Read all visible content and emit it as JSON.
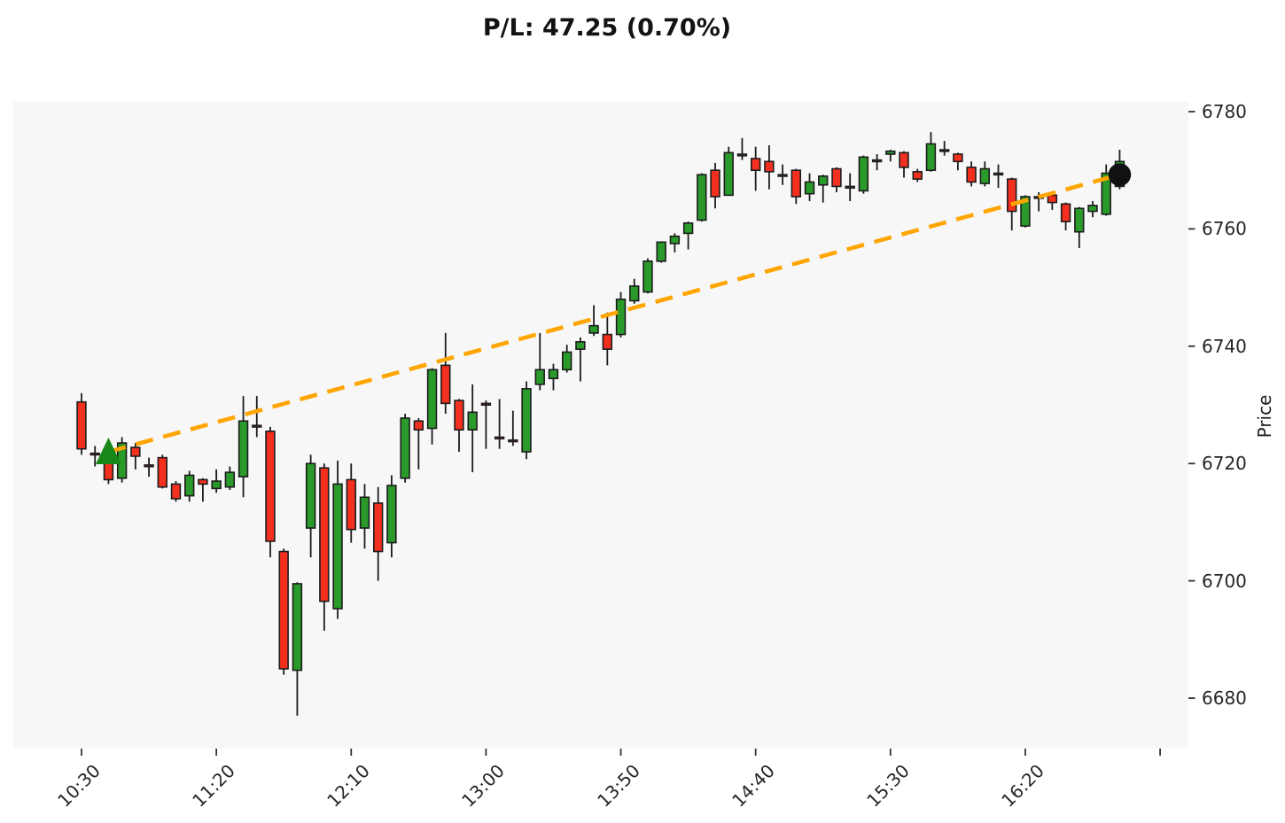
{
  "title": "P/L: 47.25 (0.70%)",
  "y_axis": {
    "label": "Price",
    "ticks": [
      6780,
      6760,
      6740,
      6720,
      6700,
      6680
    ]
  },
  "x_axis": {
    "tick_labels": [
      "10:30",
      "11:20",
      "12:10",
      "13:00",
      "13:50",
      "14:40",
      "15:30",
      "16:20"
    ],
    "label_every_n_candles": 10,
    "unlabeled_tick_at_candle": 80
  },
  "chart_data": {
    "type": "candlestick",
    "interval_minutes": 5,
    "ylim": [
      6671,
      6782
    ],
    "grid": false,
    "times": [
      "10:30",
      "10:35",
      "10:40",
      "10:45",
      "10:50",
      "10:55",
      "11:00",
      "11:05",
      "11:10",
      "11:15",
      "11:20",
      "11:25",
      "11:30",
      "11:35",
      "11:40",
      "11:45",
      "11:50",
      "11:55",
      "12:00",
      "12:05",
      "12:10",
      "12:15",
      "12:20",
      "12:25",
      "12:30",
      "12:35",
      "12:40",
      "12:45",
      "12:50",
      "12:55",
      "13:00",
      "13:05",
      "13:10",
      "13:15",
      "13:20",
      "13:25",
      "13:30",
      "13:35",
      "13:40",
      "13:45",
      "13:50",
      "13:55",
      "14:00",
      "14:05",
      "14:10",
      "14:15",
      "14:20",
      "14:25",
      "14:30",
      "14:35",
      "14:40",
      "14:45",
      "14:50",
      "14:55",
      "15:00",
      "15:05",
      "15:10",
      "15:15",
      "15:20",
      "15:25",
      "15:30",
      "15:35",
      "15:40",
      "15:45",
      "15:50",
      "15:55",
      "16:00",
      "16:05",
      "16:10",
      "16:15",
      "16:20",
      "16:25",
      "16:30",
      "16:35",
      "16:40",
      "16:45",
      "16:50",
      "16:55"
    ],
    "ohlc": [
      [
        6730.5,
        6732.0,
        6721.5,
        6722.5
      ],
      [
        6721.75,
        6723.0,
        6719.5,
        6721.5
      ],
      [
        6720.5,
        6721.25,
        6716.5,
        6717.25
      ],
      [
        6717.5,
        6724.5,
        6716.75,
        6723.5
      ],
      [
        6722.75,
        6723.5,
        6719.0,
        6721.25
      ],
      [
        6719.75,
        6721.0,
        6717.75,
        6719.5
      ],
      [
        6721.0,
        6721.5,
        6715.75,
        6716.0
      ],
      [
        6716.5,
        6717.0,
        6713.5,
        6714.0
      ],
      [
        6714.5,
        6718.75,
        6713.5,
        6718.0
      ],
      [
        6717.25,
        6717.5,
        6713.5,
        6716.5
      ],
      [
        6715.75,
        6719.0,
        6715.0,
        6717.0
      ],
      [
        6716.0,
        6719.5,
        6715.5,
        6718.5
      ],
      [
        6717.75,
        6731.5,
        6714.25,
        6727.25
      ],
      [
        6726.5,
        6731.5,
        6724.5,
        6726.25
      ],
      [
        6725.5,
        6726.25,
        6704.0,
        6706.75
      ],
      [
        6705.0,
        6705.5,
        6684.0,
        6685.0
      ],
      [
        6684.75,
        6699.75,
        6677.0,
        6699.5
      ],
      [
        6709.0,
        6721.5,
        6704.0,
        6720.0
      ],
      [
        6719.25,
        6720.0,
        6691.5,
        6696.5
      ],
      [
        6695.25,
        6720.5,
        6693.5,
        6716.5
      ],
      [
        6717.25,
        6720.0,
        6706.5,
        6708.75
      ],
      [
        6709.0,
        6716.5,
        6705.5,
        6714.25
      ],
      [
        6713.25,
        6716.0,
        6700.0,
        6705.0
      ],
      [
        6706.5,
        6718.0,
        6704.0,
        6716.25
      ],
      [
        6717.5,
        6728.5,
        6716.75,
        6727.75
      ],
      [
        6727.25,
        6727.75,
        6719.0,
        6725.75
      ],
      [
        6726.0,
        6736.25,
        6723.25,
        6736.0
      ],
      [
        6736.75,
        6742.25,
        6728.5,
        6730.25
      ],
      [
        6730.75,
        6731.0,
        6722.0,
        6725.75
      ],
      [
        6725.75,
        6733.5,
        6718.5,
        6728.75
      ],
      [
        6730.25,
        6730.75,
        6722.5,
        6730.0
      ],
      [
        6724.5,
        6731.0,
        6722.5,
        6724.25
      ],
      [
        6724.0,
        6729.0,
        6723.0,
        6723.75
      ],
      [
        6722.0,
        6734.0,
        6720.75,
        6732.75
      ],
      [
        6733.5,
        6742.25,
        6732.5,
        6736.0
      ],
      [
        6734.5,
        6737.0,
        6732.5,
        6736.0
      ],
      [
        6736.0,
        6740.25,
        6735.5,
        6739.0
      ],
      [
        6739.5,
        6741.5,
        6734.0,
        6740.75
      ],
      [
        6742.25,
        6747.0,
        6741.75,
        6743.5
      ],
      [
        6742.0,
        6745.75,
        6736.75,
        6739.5
      ],
      [
        6742.0,
        6749.25,
        6741.5,
        6748.0
      ],
      [
        6747.75,
        6751.5,
        6747.25,
        6750.25
      ],
      [
        6749.25,
        6755.0,
        6749.0,
        6754.5
      ],
      [
        6754.5,
        6757.75,
        6754.25,
        6757.75
      ],
      [
        6757.5,
        6759.25,
        6756.0,
        6758.75
      ],
      [
        6759.25,
        6761.25,
        6756.5,
        6761.0
      ],
      [
        6761.5,
        6769.5,
        6761.25,
        6769.25
      ],
      [
        6770.0,
        6771.25,
        6763.5,
        6765.5
      ],
      [
        6765.75,
        6774.0,
        6765.75,
        6773.0
      ],
      [
        6772.75,
        6775.5,
        6771.75,
        6772.75
      ],
      [
        6772.0,
        6774.0,
        6766.5,
        6770.0
      ],
      [
        6771.5,
        6774.25,
        6766.75,
        6769.75
      ],
      [
        6769.0,
        6771.0,
        6767.5,
        6769.25
      ],
      [
        6770.0,
        6770.25,
        6764.25,
        6765.5
      ],
      [
        6766.0,
        6769.5,
        6764.75,
        6768.0
      ],
      [
        6767.5,
        6769.25,
        6764.5,
        6769.0
      ],
      [
        6770.25,
        6770.5,
        6766.25,
        6767.25
      ],
      [
        6767.25,
        6769.5,
        6764.75,
        6767.25
      ],
      [
        6766.5,
        6772.5,
        6766.0,
        6772.25
      ],
      [
        6771.75,
        6772.75,
        6770.0,
        6771.75
      ],
      [
        6772.75,
        6773.5,
        6771.5,
        6773.25
      ],
      [
        6773.0,
        6773.25,
        6768.75,
        6770.5
      ],
      [
        6769.75,
        6770.25,
        6768.0,
        6768.5
      ],
      [
        6770.0,
        6776.5,
        6769.75,
        6774.5
      ],
      [
        6773.5,
        6775.0,
        6772.5,
        6773.5
      ],
      [
        6772.75,
        6773.0,
        6770.0,
        6771.5
      ],
      [
        6770.5,
        6771.5,
        6767.25,
        6768.0
      ],
      [
        6767.75,
        6771.5,
        6767.25,
        6770.25
      ],
      [
        6769.25,
        6771.0,
        6767.0,
        6769.5
      ],
      [
        6768.5,
        6768.75,
        6759.75,
        6763.0
      ],
      [
        6760.5,
        6765.75,
        6760.25,
        6765.5
      ],
      [
        6765.5,
        6766.25,
        6763.0,
        6765.25
      ],
      [
        6765.75,
        6766.0,
        6763.25,
        6764.5
      ],
      [
        6764.25,
        6764.5,
        6759.75,
        6761.25
      ],
      [
        6759.5,
        6763.75,
        6756.75,
        6763.5
      ],
      [
        6763.0,
        6764.75,
        6762.0,
        6764.0
      ],
      [
        6762.5,
        6771.0,
        6762.25,
        6769.5
      ],
      [
        6767.25,
        6773.5,
        6766.75,
        6771.5
      ]
    ],
    "trend_line": {
      "style": "dashed",
      "color": "#FFA500",
      "from_candle": 2,
      "from_price": 6722.0,
      "to_candle": 77,
      "to_price": 6769.25
    },
    "markers": {
      "entry": {
        "shape": "triangle-up",
        "color": "#178718",
        "candle_index": 2,
        "price": 6722.0
      },
      "exit": {
        "shape": "circle",
        "color": "#111111",
        "candle_index": 77,
        "price": 6769.25
      }
    },
    "colors": {
      "up": "#2a9a2a",
      "down": "#f3301f",
      "edge": "#1c1c1c",
      "wick": "#1c1c1c",
      "plot_background": "#f7f7f7",
      "tick": "#333333"
    }
  }
}
